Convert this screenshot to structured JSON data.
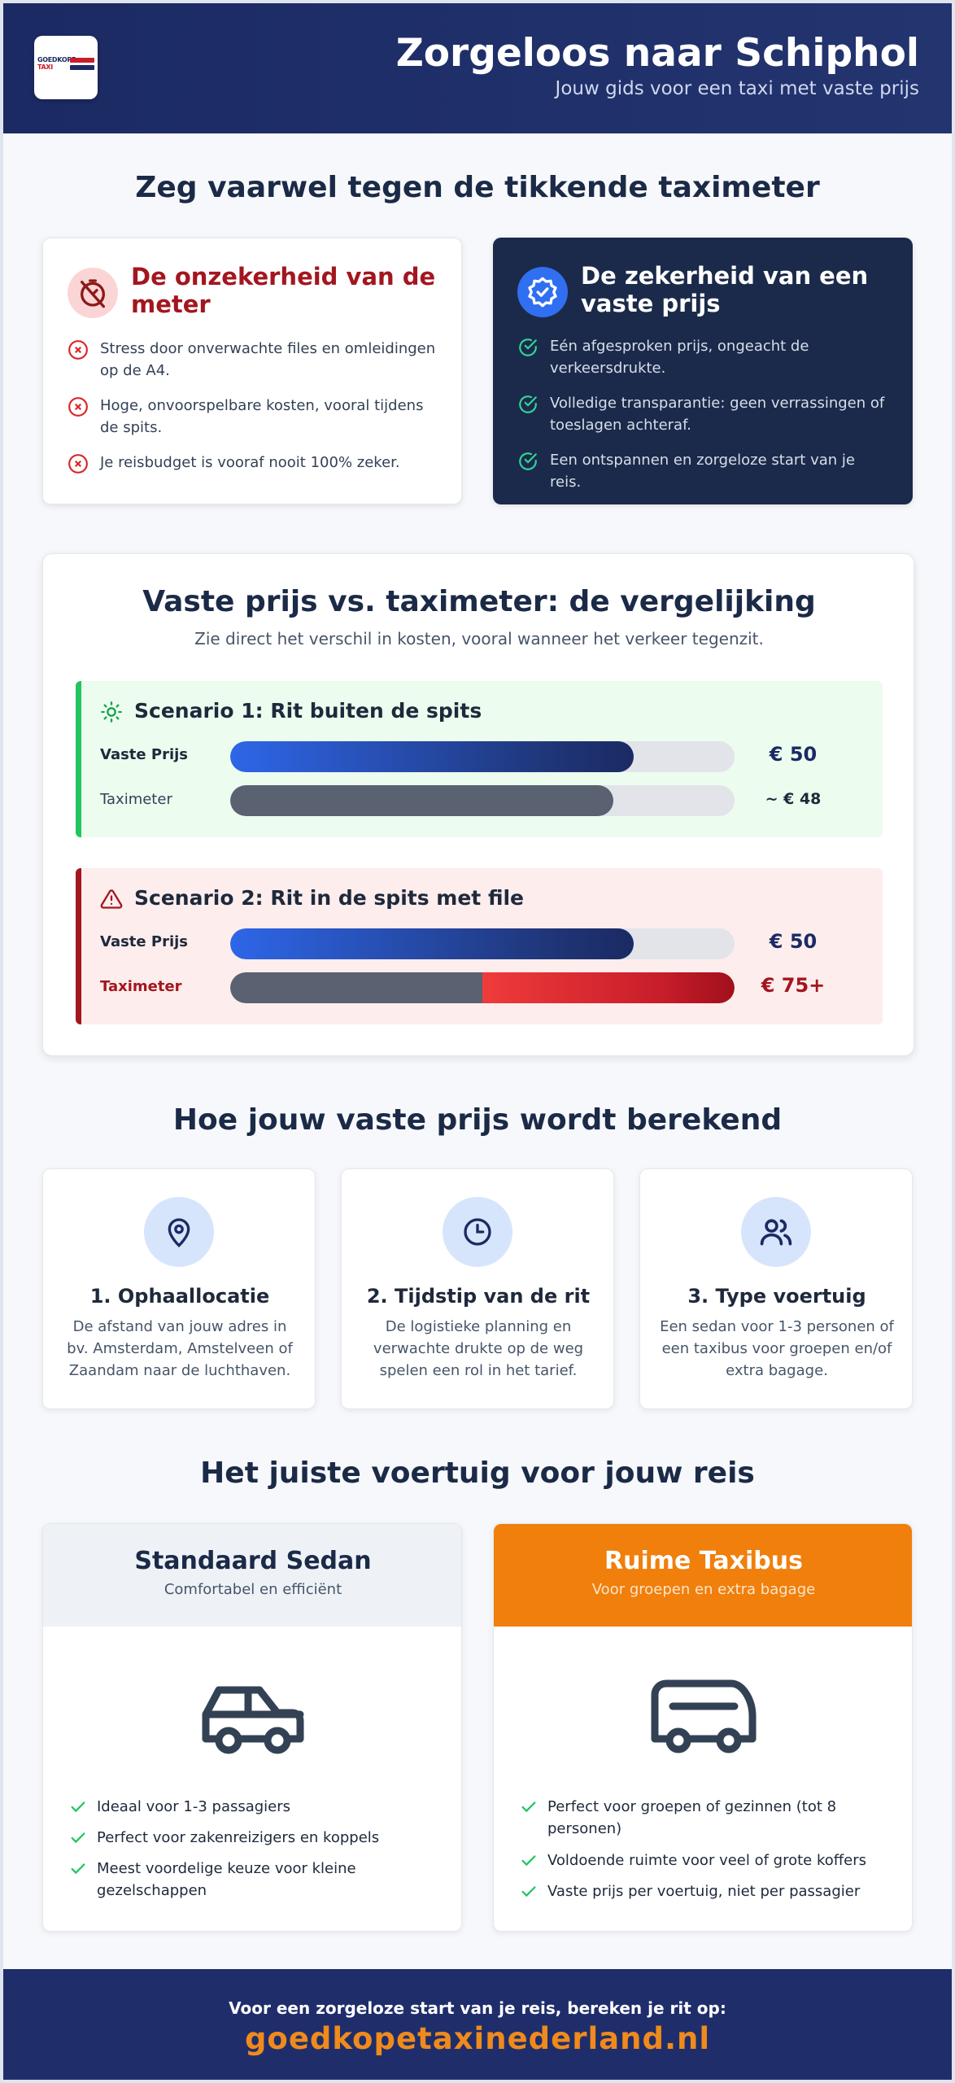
{
  "header": {
    "logo_line1": "GOEDKOPE",
    "logo_line2": "TAXI",
    "title": "Zorgeloos naar Schiphol",
    "subtitle": "Jouw gids voor een taxi met vaste prijs"
  },
  "intro": {
    "title": "Zeg vaarwel tegen de tikkende taximeter",
    "meter_card": {
      "title": "De onzekerheid van de meter",
      "icon": "meter-off-icon",
      "items": [
        "Stress door onverwachte files en omleidingen op de A4.",
        "Hoge, onvoorspelbare kosten, vooral tijdens de spits.",
        "Je reisbudget is vooraf nooit 100% zeker."
      ]
    },
    "fixed_card": {
      "title": "De zekerheid van een vaste prijs",
      "icon": "badge-check-icon",
      "items": [
        "Eén afgesproken prijs, ongeacht de verkeersdrukte.",
        "Volledige transparantie: geen verrassingen of toeslagen achteraf.",
        "Een ontspannen en zorgeloze start van je reis."
      ]
    }
  },
  "comparison": {
    "title": "Vaste prijs vs. taximeter: de vergelijking",
    "subtitle": "Zie direct het verschil in kosten, vooral wanneer het verkeer tegenzit.",
    "scenarios": [
      {
        "title": "Scenario 1: Rit buiten de spits",
        "icon": "sun-icon",
        "rows": [
          {
            "label": "Vaste Prijs",
            "value": "€ 50",
            "fill_percent": 80
          },
          {
            "label": "Taximeter",
            "value": "~ € 48",
            "fill_percent": 76
          }
        ]
      },
      {
        "title": "Scenario 2: Rit in de spits met file",
        "icon": "warning-icon",
        "rows": [
          {
            "label": "Vaste Prijs",
            "value": "€ 50",
            "fill_percent": 80
          },
          {
            "label": "Taximeter",
            "value": "€ 75+",
            "fill_percent": 100,
            "base_percent": 50
          }
        ]
      }
    ]
  },
  "how": {
    "title": "Hoe jouw vaste prijs wordt berekend",
    "cards": [
      {
        "icon": "map-pin-icon",
        "title": "1. Ophaallocatie",
        "text": "De afstand van jouw adres in bv. Amsterdam, Amstelveen of Zaandam naar de luchthaven."
      },
      {
        "icon": "clock-icon",
        "title": "2. Tijdstip van de rit",
        "text": "De logistieke planning en verwachte drukte op de weg spelen een rol in het tarief."
      },
      {
        "icon": "users-icon",
        "title": "3. Type voertuig",
        "text": "Een sedan voor 1-3 personen of een taxibus voor groepen en/of extra bagage."
      }
    ]
  },
  "vehicles": {
    "title": "Het juiste voertuig voor jouw reis",
    "cards": [
      {
        "title": "Standaard Sedan",
        "subtitle": "Comfortabel en efficiënt",
        "icon": "car-icon",
        "items": [
          "Ideaal voor 1-3 passagiers",
          "Perfect voor zakenreizigers en koppels",
          "Meest voordelige keuze voor kleine gezelschappen"
        ]
      },
      {
        "title": "Ruime Taxibus",
        "subtitle": "Voor groepen en extra bagage",
        "icon": "bus-icon",
        "items": [
          "Perfect voor groepen of gezinnen (tot 8 personen)",
          "Voldoende ruimte voor veel of grote koffers",
          "Vaste prijs per voertuig, niet per passagier"
        ]
      }
    ]
  },
  "footer": {
    "line": "Voor een zorgeloze start van je reis, bereken je rit op:",
    "url": "goedkopetaxinederland.nl"
  },
  "colors": {
    "navy": "#1b2a63",
    "dark_card": "#1b2a4a",
    "red": "#c81e2a",
    "green": "#22c55e",
    "orange": "#f08a1c",
    "bus_header": "#f07f0c"
  }
}
